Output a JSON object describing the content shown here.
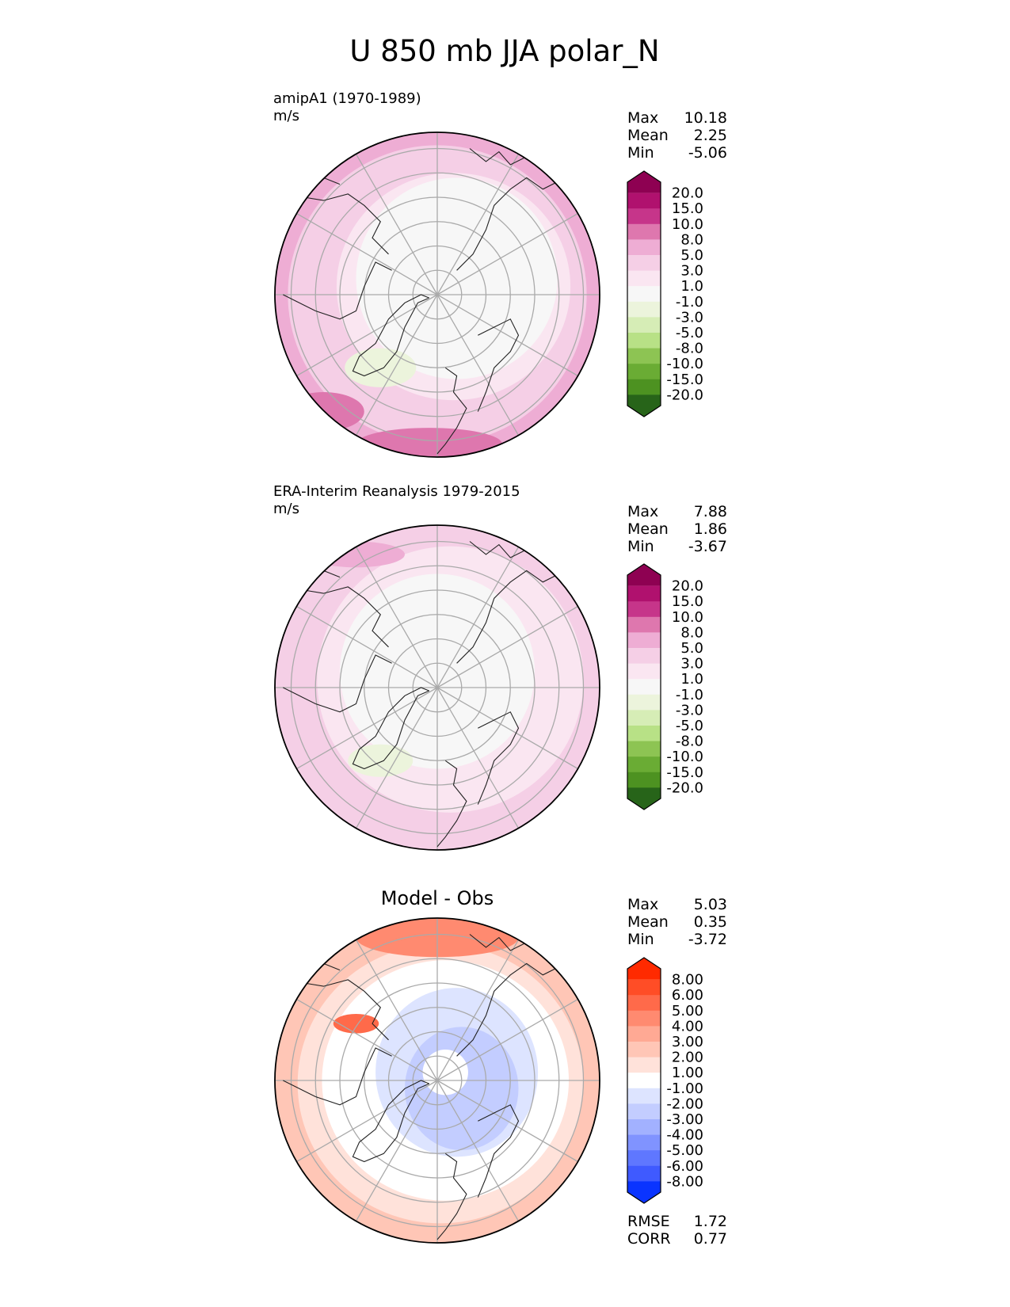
{
  "title": "U 850 mb JJA polar_N",
  "chart_data": [
    {
      "type": "heatmap",
      "projection": "north polar stereographic",
      "label": "amipA1 (1970-1989)",
      "units": "m/s",
      "title": "",
      "stats": {
        "max": "10.18",
        "mean": "2.25",
        "min": "-5.06"
      },
      "colorbar": {
        "ticks": [
          "20.0",
          "15.0",
          "10.0",
          "8.0",
          "5.0",
          "3.0",
          "1.0",
          "-1.0",
          "-3.0",
          "-5.0",
          "-8.0",
          "-10.0",
          "-15.0",
          "-20.0"
        ],
        "colors": [
          "#8e0152",
          "#b0116e",
          "#c6358a",
          "#de77ae",
          "#eeadd4",
          "#f5cfe6",
          "#fae6f1",
          "#f7f7f7",
          "#ecf4dc",
          "#d6edb6",
          "#b8e186",
          "#8dc453",
          "#6aac34",
          "#4d9221",
          "#276419"
        ],
        "extend": "both"
      }
    },
    {
      "type": "heatmap",
      "projection": "north polar stereographic",
      "label": "ERA-Interim Reanalysis 1979-2015",
      "units": "m/s",
      "title": "",
      "stats": {
        "max": "7.88",
        "mean": "1.86",
        "min": "-3.67"
      },
      "colorbar": {
        "ticks": [
          "20.0",
          "15.0",
          "10.0",
          "8.0",
          "5.0",
          "3.0",
          "1.0",
          "-1.0",
          "-3.0",
          "-5.0",
          "-8.0",
          "-10.0",
          "-15.0",
          "-20.0"
        ],
        "colors": [
          "#8e0152",
          "#b0116e",
          "#c6358a",
          "#de77ae",
          "#eeadd4",
          "#f5cfe6",
          "#fae6f1",
          "#f7f7f7",
          "#ecf4dc",
          "#d6edb6",
          "#b8e186",
          "#8dc453",
          "#6aac34",
          "#4d9221",
          "#276419"
        ],
        "extend": "both"
      }
    },
    {
      "type": "heatmap",
      "projection": "north polar stereographic",
      "label": "",
      "units": "",
      "title": "Model - Obs",
      "stats": {
        "max": "5.03",
        "mean": "0.35",
        "min": "-3.72"
      },
      "extra_stats": {
        "rmse": "1.72",
        "corr": "0.77"
      },
      "colorbar": {
        "ticks": [
          "8.00",
          "6.00",
          "5.00",
          "4.00",
          "3.00",
          "2.00",
          "1.00",
          "-1.00",
          "-2.00",
          "-3.00",
          "-4.00",
          "-5.00",
          "-6.00",
          "-8.00"
        ],
        "colors": [
          "#ff2a00",
          "#ff4d26",
          "#ff6a4a",
          "#ff8a70",
          "#ffa994",
          "#ffc6b6",
          "#ffe2da",
          "#ffffff",
          "#dde4ff",
          "#c3cdff",
          "#a2b1ff",
          "#8093ff",
          "#5f77ff",
          "#3f5aff",
          "#0a34ff"
        ],
        "extend": "both"
      }
    }
  ],
  "labels": {
    "max": "Max",
    "mean": "Mean",
    "min": "Min",
    "rmse": "RMSE",
    "corr": "CORR"
  },
  "colors": {
    "coast": "#222222",
    "grid": "#aaaaaa",
    "pos_bg": "#f7d5e8",
    "diff_bg": "#ffffff"
  }
}
